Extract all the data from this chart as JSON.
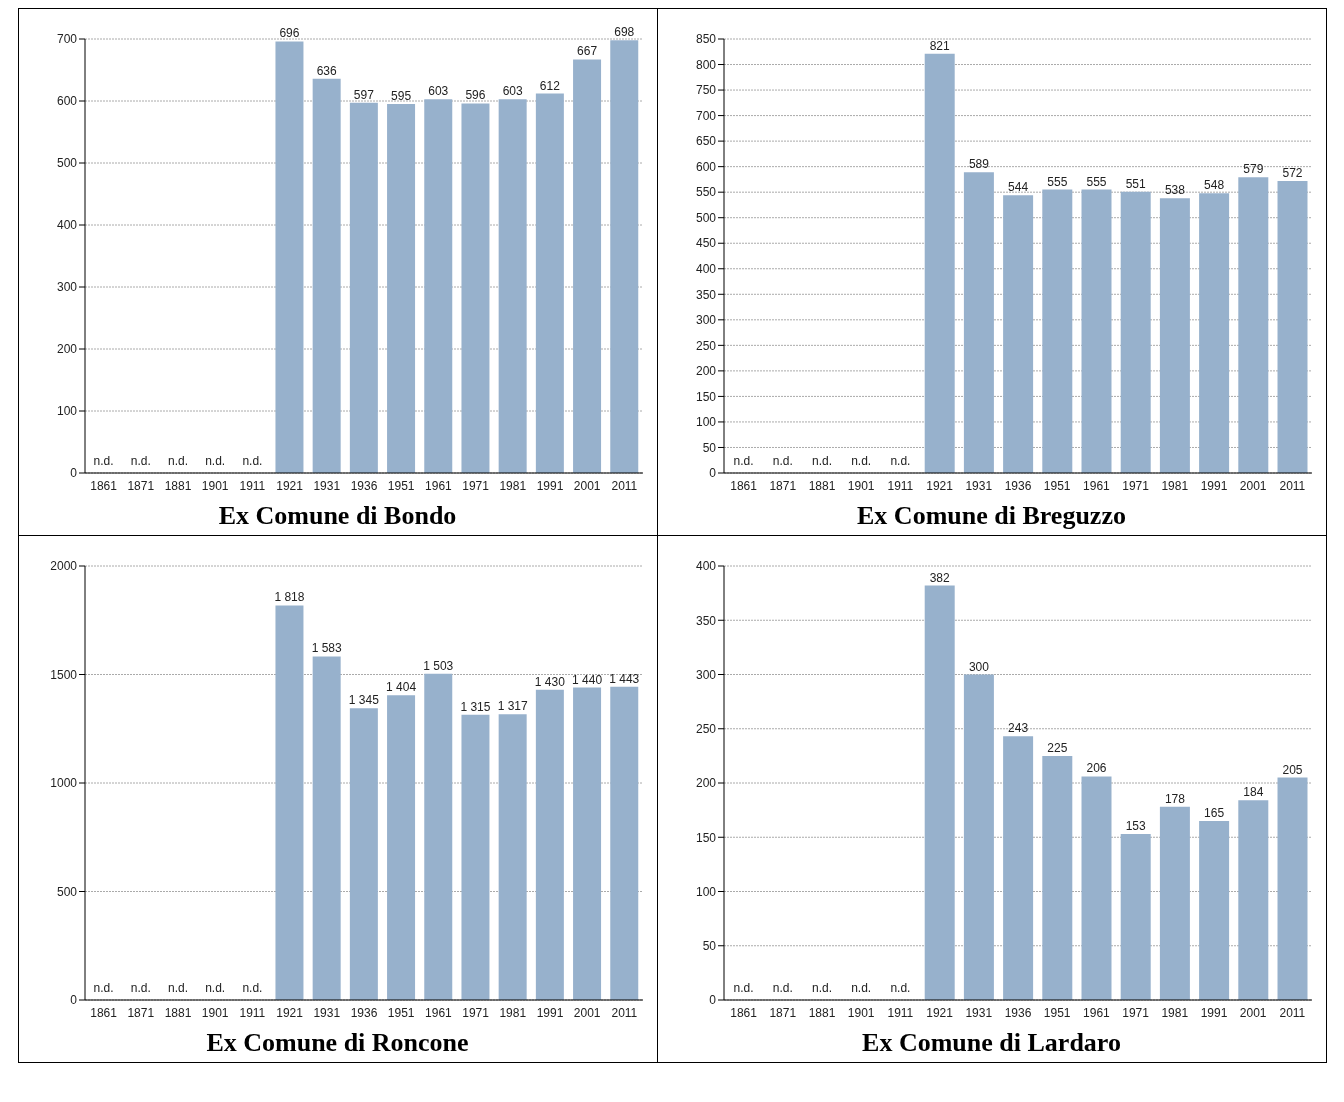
{
  "chart_data": [
    {
      "type": "bar",
      "title": "Ex Comune di Bondo",
      "categories": [
        "1861",
        "1871",
        "1881",
        "1901",
        "1911",
        "1921",
        "1931",
        "1936",
        "1951",
        "1961",
        "1971",
        "1981",
        "1991",
        "2001",
        "2011"
      ],
      "values": [
        null,
        null,
        null,
        null,
        null,
        696,
        636,
        597,
        595,
        603,
        596,
        603,
        612,
        667,
        698
      ],
      "value_labels": [
        "n.d.",
        "n.d.",
        "n.d.",
        "n.d.",
        "n.d.",
        "696",
        "636",
        "597",
        "595",
        "603",
        "596",
        "603",
        "612",
        "667",
        "698"
      ],
      "color": "#97b1cc",
      "ylim": [
        0,
        700
      ],
      "yticks": [
        0,
        100,
        200,
        300,
        400,
        500,
        600,
        700
      ],
      "grid": "y"
    },
    {
      "type": "bar",
      "title": "Ex Comune di Breguzzo",
      "categories": [
        "1861",
        "1871",
        "1881",
        "1901",
        "1911",
        "1921",
        "1931",
        "1936",
        "1951",
        "1961",
        "1971",
        "1981",
        "1991",
        "2001",
        "2011"
      ],
      "values": [
        null,
        null,
        null,
        null,
        null,
        821,
        589,
        544,
        555,
        555,
        551,
        538,
        548,
        579,
        572
      ],
      "value_labels": [
        "n.d.",
        "n.d.",
        "n.d.",
        "n.d.",
        "n.d.",
        "821",
        "589",
        "544",
        "555",
        "555",
        "551",
        "538",
        "548",
        "579",
        "572"
      ],
      "color": "#97b1cc",
      "ylim": [
        0,
        850
      ],
      "yticks": [
        0,
        50,
        100,
        150,
        200,
        250,
        300,
        350,
        400,
        450,
        500,
        550,
        600,
        650,
        700,
        750,
        800,
        850
      ],
      "grid": "y"
    },
    {
      "type": "bar",
      "title": "Ex Comune di Roncone",
      "categories": [
        "1861",
        "1871",
        "1881",
        "1901",
        "1911",
        "1921",
        "1931",
        "1936",
        "1951",
        "1961",
        "1971",
        "1981",
        "1991",
        "2001",
        "2011"
      ],
      "values": [
        null,
        null,
        null,
        null,
        null,
        1818,
        1583,
        1345,
        1404,
        1503,
        1315,
        1317,
        1430,
        1440,
        1443
      ],
      "value_labels": [
        "n.d.",
        "n.d.",
        "n.d.",
        "n.d.",
        "n.d.",
        "1 818",
        "1 583",
        "1 345",
        "1 404",
        "1 503",
        "1 315",
        "1 317",
        "1 430",
        "1 440",
        "1 443"
      ],
      "color": "#97b1cc",
      "ylim": [
        0,
        2000
      ],
      "yticks": [
        0,
        500,
        1000,
        1500,
        2000
      ],
      "grid": "y"
    },
    {
      "type": "bar",
      "title": "Ex Comune di Lardaro",
      "categories": [
        "1861",
        "1871",
        "1881",
        "1901",
        "1911",
        "1921",
        "1931",
        "1936",
        "1951",
        "1961",
        "1971",
        "1981",
        "1991",
        "2001",
        "2011"
      ],
      "values": [
        null,
        null,
        null,
        null,
        null,
        382,
        300,
        243,
        225,
        206,
        153,
        178,
        165,
        184,
        205
      ],
      "value_labels": [
        "n.d.",
        "n.d.",
        "n.d.",
        "n.d.",
        "n.d.",
        "382",
        "300",
        "243",
        "225",
        "206",
        "153",
        "178",
        "165",
        "184",
        "205"
      ],
      "color": "#97b1cc",
      "ylim": [
        0,
        400
      ],
      "yticks": [
        0,
        50,
        100,
        150,
        200,
        250,
        300,
        350,
        400
      ],
      "grid": "y"
    }
  ]
}
